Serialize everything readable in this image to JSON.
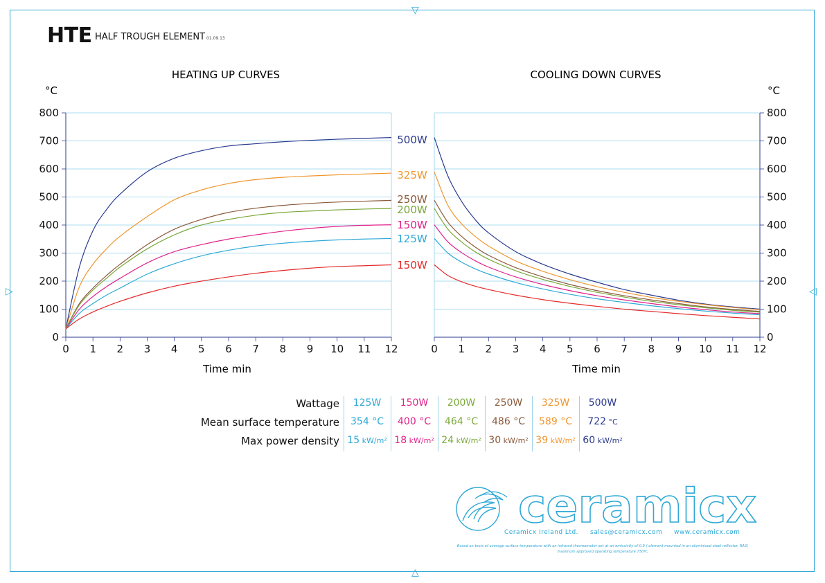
{
  "header": {
    "code": "HTE",
    "name": "HALF TROUGH ELEMENT",
    "date": "01.09.13"
  },
  "charts": {
    "heating_title": "HEATING UP CURVES",
    "cooling_title": "COOLING DOWN CURVES",
    "y_unit": "°C",
    "x_label": "Time min"
  },
  "chart_data": [
    {
      "type": "line",
      "title": "HEATING UP CURVES",
      "xlabel": "Time min",
      "ylabel": "°C",
      "xlim": [
        0,
        12
      ],
      "ylim": [
        0,
        800
      ],
      "x_ticks": [
        0,
        1,
        2,
        3,
        4,
        5,
        6,
        7,
        8,
        9,
        10,
        11,
        12
      ],
      "y_ticks": [
        0,
        100,
        200,
        300,
        400,
        500,
        600,
        700,
        800
      ],
      "grid": true,
      "x": [
        0,
        0.5,
        1,
        1.5,
        2,
        3,
        4,
        5,
        6,
        7,
        8,
        9,
        10,
        11,
        12
      ],
      "series": [
        {
          "name": "500W",
          "color": "#2b3a8f",
          "values": [
            30,
            250,
            380,
            455,
            510,
            590,
            638,
            665,
            682,
            690,
            697,
            702,
            706,
            709,
            712
          ]
        },
        {
          "name": "325W",
          "color": "#f0962e",
          "values": [
            30,
            180,
            260,
            315,
            360,
            430,
            490,
            525,
            548,
            562,
            570,
            575,
            579,
            582,
            585
          ]
        },
        {
          "name": "250W",
          "color": "#8b5a3c",
          "values": [
            30,
            120,
            175,
            220,
            260,
            330,
            385,
            420,
            445,
            460,
            470,
            477,
            482,
            485,
            488
          ]
        },
        {
          "name": "200W",
          "color": "#7ba83a",
          "values": [
            30,
            115,
            168,
            210,
            250,
            315,
            365,
            400,
            420,
            435,
            445,
            450,
            454,
            457,
            459
          ]
        },
        {
          "name": "150W",
          "color": "#e0228a",
          "values": [
            30,
            100,
            145,
            180,
            210,
            265,
            305,
            330,
            350,
            365,
            378,
            388,
            395,
            399,
            401
          ]
        },
        {
          "name": "125W",
          "color": "#2ea8d6",
          "values": [
            30,
            85,
            120,
            150,
            175,
            225,
            262,
            290,
            310,
            325,
            335,
            342,
            347,
            350,
            352
          ]
        },
        {
          "name": "150W",
          "color": "#e52a2a",
          "values": [
            30,
            65,
            90,
            110,
            128,
            158,
            182,
            200,
            215,
            228,
            238,
            246,
            252,
            255,
            258
          ]
        }
      ]
    },
    {
      "type": "line",
      "title": "COOLING DOWN CURVES",
      "xlabel": "Time min",
      "ylabel": "°C",
      "xlim": [
        0,
        12
      ],
      "ylim": [
        0,
        800
      ],
      "x_ticks": [
        0,
        1,
        2,
        3,
        4,
        5,
        6,
        7,
        8,
        9,
        10,
        11,
        12
      ],
      "y_ticks": [
        0,
        100,
        200,
        300,
        400,
        500,
        600,
        700,
        800
      ],
      "grid": true,
      "x": [
        0,
        0.5,
        1,
        1.5,
        2,
        3,
        4,
        5,
        6,
        7,
        8,
        9,
        10,
        11,
        12
      ],
      "series": [
        {
          "name": "500W",
          "color": "#2b3a8f",
          "values": [
            712,
            575,
            485,
            420,
            372,
            305,
            260,
            225,
            196,
            170,
            150,
            132,
            118,
            108,
            100
          ]
        },
        {
          "name": "325W",
          "color": "#f0962e",
          "values": [
            589,
            470,
            405,
            360,
            325,
            272,
            235,
            205,
            180,
            160,
            142,
            128,
            116,
            106,
            98
          ]
        },
        {
          "name": "250W",
          "color": "#8b5a3c",
          "values": [
            488,
            410,
            360,
            322,
            292,
            248,
            215,
            188,
            166,
            148,
            133,
            120,
            108,
            99,
            92
          ]
        },
        {
          "name": "200W",
          "color": "#7ba83a",
          "values": [
            459,
            385,
            340,
            305,
            278,
            237,
            206,
            181,
            160,
            143,
            128,
            116,
            105,
            96,
            89
          ]
        },
        {
          "name": "150W",
          "color": "#e0228a",
          "values": [
            401,
            340,
            302,
            273,
            250,
            215,
            188,
            166,
            148,
            133,
            120,
            108,
            98,
            90,
            84
          ]
        },
        {
          "name": "125W",
          "color": "#2ea8d6",
          "values": [
            352,
            300,
            268,
            244,
            225,
            195,
            172,
            153,
            137,
            124,
            112,
            102,
            93,
            86,
            80
          ]
        },
        {
          "name": "150W",
          "color": "#e52a2a",
          "values": [
            258,
            220,
            198,
            182,
            170,
            150,
            134,
            121,
            110,
            100,
            92,
            84,
            77,
            71,
            65
          ]
        }
      ]
    }
  ],
  "table": {
    "row_labels": [
      "Wattage",
      "Mean surface temperature",
      "Max power density"
    ],
    "columns": [
      {
        "color": "#2ea8d6",
        "wattage": "125W",
        "temp": "354 °C",
        "density": "15",
        "density_unit": "kW/m²"
      },
      {
        "color": "#e0228a",
        "wattage": "150W",
        "temp": "400 °C",
        "density": "18",
        "density_unit": "kW/m²"
      },
      {
        "color": "#7ba83a",
        "wattage": "200W",
        "temp": "464 °C",
        "density": "24",
        "density_unit": "kW/m²"
      },
      {
        "color": "#8b5a3c",
        "wattage": "250W",
        "temp": "486 °C",
        "density": "30",
        "density_unit": "kW/m²"
      },
      {
        "color": "#f0962e",
        "wattage": "325W",
        "temp": "589 °C",
        "density": "39",
        "density_unit": "kW/m²"
      },
      {
        "color": "#2b3a8f",
        "wattage": "500W",
        "temp": "722",
        "temp_unit": "°C",
        "density": "60",
        "density_unit": "kW/m²"
      }
    ]
  },
  "logo": {
    "word": "ceramicx",
    "company": "Ceramicx Ireland Ltd.",
    "email": "sales@ceramicx.com",
    "web": "www.ceramicx.com"
  },
  "footnote": {
    "line1": "Based on tests of average surface temperature with an infrared thermometer set at an emissivity of 0.9 ( element mounted in an aluminised steel reflector, RAS)",
    "line2": "maximum approved operating temperature 750ºC"
  },
  "colors": {
    "frame": "#2ea8d6",
    "grid": "#8fd0ea",
    "axis": "#2b3a8f"
  }
}
